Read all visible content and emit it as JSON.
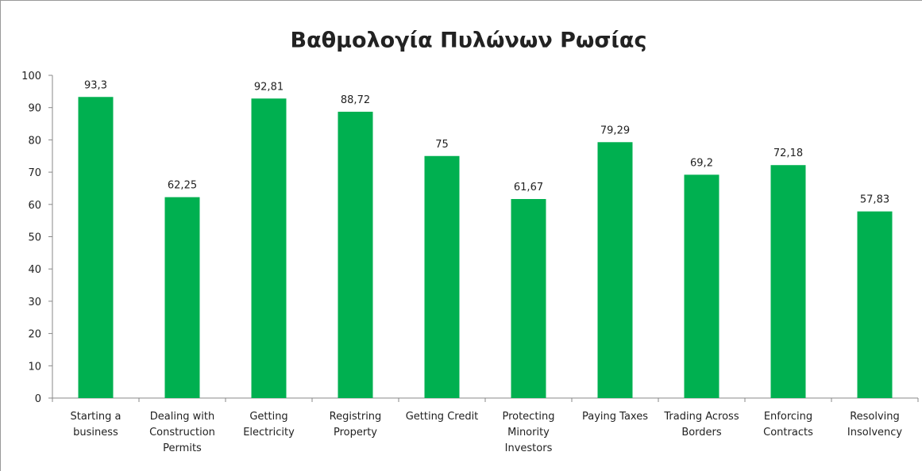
{
  "chart_data": {
    "type": "bar",
    "title": "Βαθμολογία Πυλώνων Ρωσίας",
    "categories": [
      "Starting a business",
      "Dealing with Construction Permits",
      "Getting Electricity",
      "Registring Property",
      "Getting Credit",
      "Protecting Minority Investors",
      "Paying Taxes",
      "Trading Across Borders",
      "Enforcing Contracts",
      "Resolving Insolvency"
    ],
    "values": [
      93.3,
      62.25,
      92.81,
      88.72,
      75,
      61.67,
      79.29,
      69.2,
      72.18,
      57.83
    ],
    "value_labels": [
      "93,3",
      "62,25",
      "92,81",
      "88,72",
      "75",
      "61,67",
      "79,29",
      "69,2",
      "72,18",
      "57,83"
    ],
    "color": "#00b050",
    "ylim": [
      0,
      100
    ],
    "yticks": [
      0,
      10,
      20,
      30,
      40,
      50,
      60,
      70,
      80,
      90,
      100
    ],
    "grid": false
  }
}
